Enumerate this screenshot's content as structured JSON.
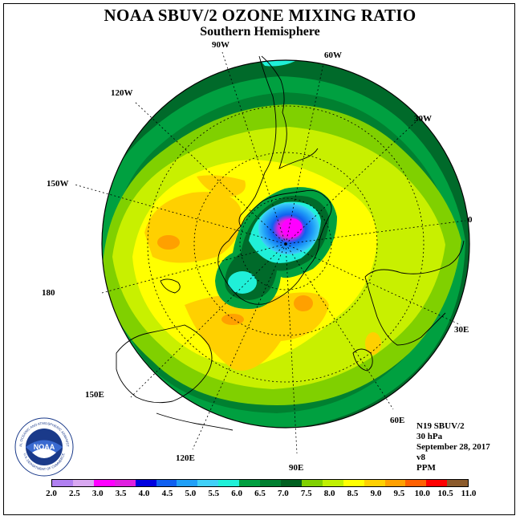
{
  "title": "NOAA SBUV/2 OZONE MIXING RATIO",
  "subtitle": "Southern Hemisphere",
  "longitude_labels": {
    "lon_90w": "90W",
    "lon_60w": "60W",
    "lon_120w": "120W",
    "lon_30w": "30W",
    "lon_150w": "150W",
    "lon_0": "0",
    "lon_180": "180",
    "lon_30e": "30E",
    "lon_150e": "150E",
    "lon_60e": "60E",
    "lon_120e": "120E",
    "lon_90e": "90E"
  },
  "info": {
    "satellite": "N19 SBUV/2",
    "level": "30 hPa",
    "date": "September 28, 2017",
    "version": "v8",
    "units": "PPM"
  },
  "logo": {
    "name": "NOAA",
    "ring_text": "NATIONAL OCEANIC AND ATMOSPHERIC ADMINISTRATION",
    "ring_text_bottom": "U.S. DEPARTMENT OF COMMERCE",
    "icon": "noaa-seal-icon"
  },
  "colorbar": {
    "ticks": [
      "2.0",
      "2.5",
      "3.0",
      "3.5",
      "4.0",
      "4.5",
      "5.0",
      "5.5",
      "6.0",
      "6.5",
      "7.0",
      "7.5",
      "8.0",
      "8.5",
      "9.0",
      "9.5",
      "10.0",
      "10.5",
      "11.0"
    ],
    "colors": [
      "#b080f0",
      "#d8a8f0",
      "#ff00ff",
      "#e020e0",
      "#0000e0",
      "#1060f0",
      "#20a0f8",
      "#40d0f8",
      "#20f0d8",
      "#00a040",
      "#008030",
      "#006020",
      "#80d000",
      "#c0f000",
      "#ffff00",
      "#ffd000",
      "#ffa000",
      "#ff6000",
      "#ff0000",
      "#8b5a2b"
    ]
  },
  "colors": {
    "outer_dark_green": "#006a2a",
    "green": "#00a040",
    "light_green": "#80d000",
    "yellow_green": "#c8f000",
    "yellow": "#ffff00",
    "gold": "#ffd000",
    "orange": "#ffa000",
    "cyan": "#20f0d8",
    "blue": "#1060f0",
    "magenta": "#ff00ff"
  }
}
